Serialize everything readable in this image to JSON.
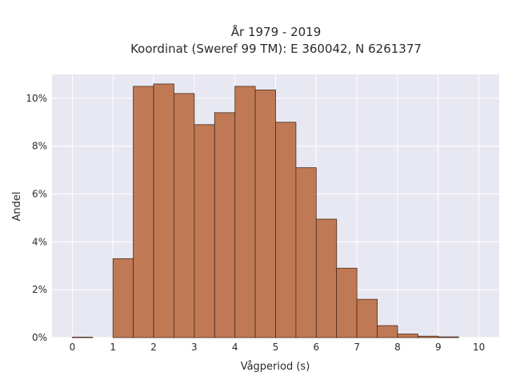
{
  "chart_data": {
    "type": "bar",
    "title": "År 1979 - 2019",
    "subtitle": "Koordinat (Sweref 99 TM): E 360042, N 6261377",
    "xlabel": "Vågperiod (s)",
    "ylabel": "Andel",
    "bin_width": 0.5,
    "bin_starts": [
      0,
      0.5,
      1.0,
      1.5,
      2.0,
      2.5,
      3.0,
      3.5,
      4.0,
      4.5,
      5.0,
      5.5,
      6.0,
      6.5,
      7.0,
      7.5,
      8.0,
      8.5,
      9.0,
      9.5
    ],
    "values": [
      0.02,
      0,
      3.3,
      10.5,
      10.6,
      10.2,
      8.9,
      9.4,
      10.5,
      10.35,
      9.0,
      7.1,
      4.95,
      2.9,
      1.6,
      0.5,
      0.15,
      0.06,
      0.03,
      0
    ],
    "xlim": [
      -0.5,
      10.5
    ],
    "ylim": [
      0,
      11
    ],
    "xticks": [
      0,
      1,
      2,
      3,
      4,
      5,
      6,
      7,
      8,
      9,
      10
    ],
    "yticks": [
      0,
      2,
      4,
      6,
      8,
      10
    ],
    "ytick_suffix": "%",
    "grid": true,
    "colors": {
      "bar_fill": "#bf7a55",
      "bar_edge": "#4a2a1a",
      "plot_bg": "#e8e8f2",
      "grid": "#ffffff"
    }
  }
}
